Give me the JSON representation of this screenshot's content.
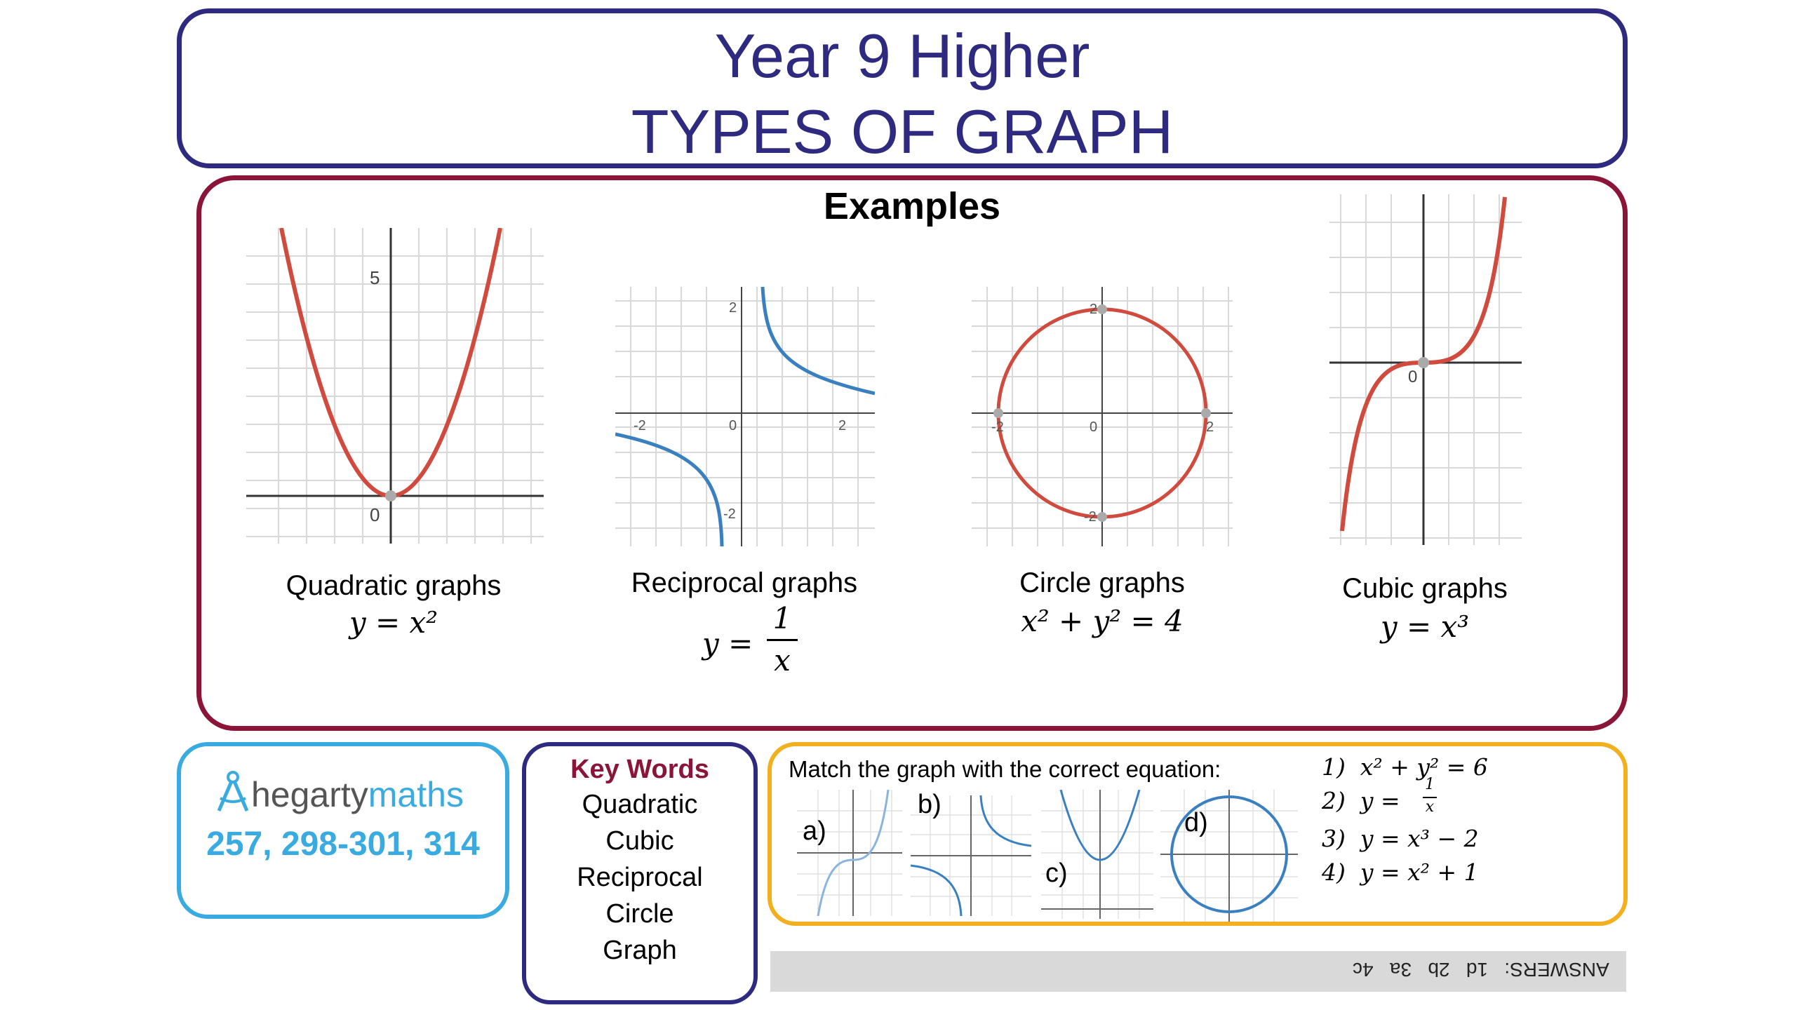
{
  "title": {
    "line1": "Year 9 Higher",
    "line2": "TYPES OF GRAPH"
  },
  "examples": {
    "heading": "Examples",
    "colors": {
      "red": "#d04a3e",
      "blue": "#3a80c0",
      "grid": "#d0d0d0",
      "axis": "#333333"
    },
    "graphs": [
      {
        "label": "Quadratic graphs",
        "equation": "y = x²",
        "ticks": {
          "y": "5",
          "origin": "0"
        }
      },
      {
        "label": "Reciprocal graphs",
        "equation_lhs": "y =",
        "equation_num": "1",
        "equation_den": "x",
        "ticks": {
          "xneg": "-2",
          "origin": "0",
          "xpos": "2",
          "ypos": "2",
          "yneg": "-2"
        }
      },
      {
        "label": "Circle graphs",
        "equation": "x² + y² = 4",
        "ticks": {
          "xneg": "-2",
          "origin": "0",
          "xpos": "2",
          "ypos": "2",
          "yneg": "-2"
        }
      },
      {
        "label": "Cubic graphs",
        "equation": "y = x³",
        "ticks": {
          "origin": "0"
        }
      }
    ]
  },
  "hegarty": {
    "brand_a": "hegarty",
    "brand_b": "maths",
    "tasks": "257, 298-301, 314"
  },
  "keywords": {
    "title": "Key Words",
    "items": [
      "Quadratic",
      "Cubic",
      "Reciprocal",
      "Circle",
      "Graph"
    ]
  },
  "match": {
    "prompt": "Match the graph with the correct equation:",
    "mini_labels": [
      "a)",
      "b)",
      "c)",
      "d)"
    ],
    "options": [
      {
        "num": "1)",
        "eq": "x² + y² = 6"
      },
      {
        "num": "2)",
        "eq_lhs": "y =",
        "eq_num": "1",
        "eq_den": "x"
      },
      {
        "num": "3)",
        "eq": "y = x³ − 2"
      },
      {
        "num": "4)",
        "eq": "y = x² + 1"
      }
    ]
  },
  "answers": "ANSWERS:   1d   2b   3a   4c"
}
